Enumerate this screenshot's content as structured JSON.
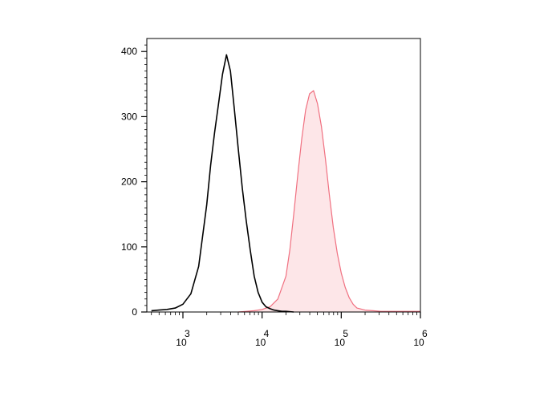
{
  "chart_data": {
    "type": "histogram",
    "title": "",
    "xlabel": "",
    "ylabel": "",
    "x_scale": "log",
    "xlim": [
      350,
      1000000
    ],
    "ylim": [
      0,
      420
    ],
    "grid": false,
    "legend": "none",
    "y_ticks": [
      {
        "value": 0,
        "label": "0"
      },
      {
        "value": 100,
        "label": "100"
      },
      {
        "value": 200,
        "label": "200"
      },
      {
        "value": 300,
        "label": "300"
      },
      {
        "value": 400,
        "label": "400"
      }
    ],
    "x_ticks": [
      {
        "value": 1000,
        "base": "10",
        "exp": "3"
      },
      {
        "value": 10000,
        "base": "10",
        "exp": "4"
      },
      {
        "value": 100000,
        "base": "10",
        "exp": "5"
      },
      {
        "value": 1000000,
        "base": "10",
        "exp": "6"
      }
    ],
    "series": [
      {
        "color": "#000000",
        "fill": "none",
        "x": [
          400,
          500,
          630,
          800,
          1000,
          1260,
          1580,
          2000,
          2240,
          2510,
          2820,
          3160,
          3550,
          3980,
          4470,
          5010,
          5620,
          6310,
          7080,
          7940,
          8910,
          10000,
          11200,
          12600,
          14100,
          15800,
          17800,
          20000,
          25100
        ],
        "y": [
          2,
          3,
          4,
          6,
          12,
          28,
          70,
          165,
          225,
          275,
          320,
          365,
          395,
          370,
          310,
          250,
          190,
          140,
          95,
          55,
          30,
          15,
          8,
          5,
          3,
          2,
          1,
          1,
          0
        ]
      },
      {
        "color": "#f07080",
        "fill": "#fde6e8",
        "x": [
          5010,
          6310,
          7940,
          10000,
          12600,
          15800,
          20000,
          22400,
          25100,
          28200,
          31600,
          35500,
          39800,
          44700,
          50100,
          56200,
          63100,
          70800,
          79400,
          89100,
          100000,
          112000,
          126000,
          141000,
          158000,
          200000,
          251000,
          316000,
          398000,
          501000,
          631000,
          794000,
          1000000
        ],
        "y": [
          0,
          1,
          2,
          4,
          8,
          20,
          55,
          95,
          150,
          210,
          265,
          310,
          335,
          340,
          320,
          285,
          235,
          180,
          130,
          90,
          60,
          38,
          22,
          12,
          6,
          3,
          2,
          1,
          1,
          1,
          1,
          1,
          1
        ]
      }
    ]
  }
}
